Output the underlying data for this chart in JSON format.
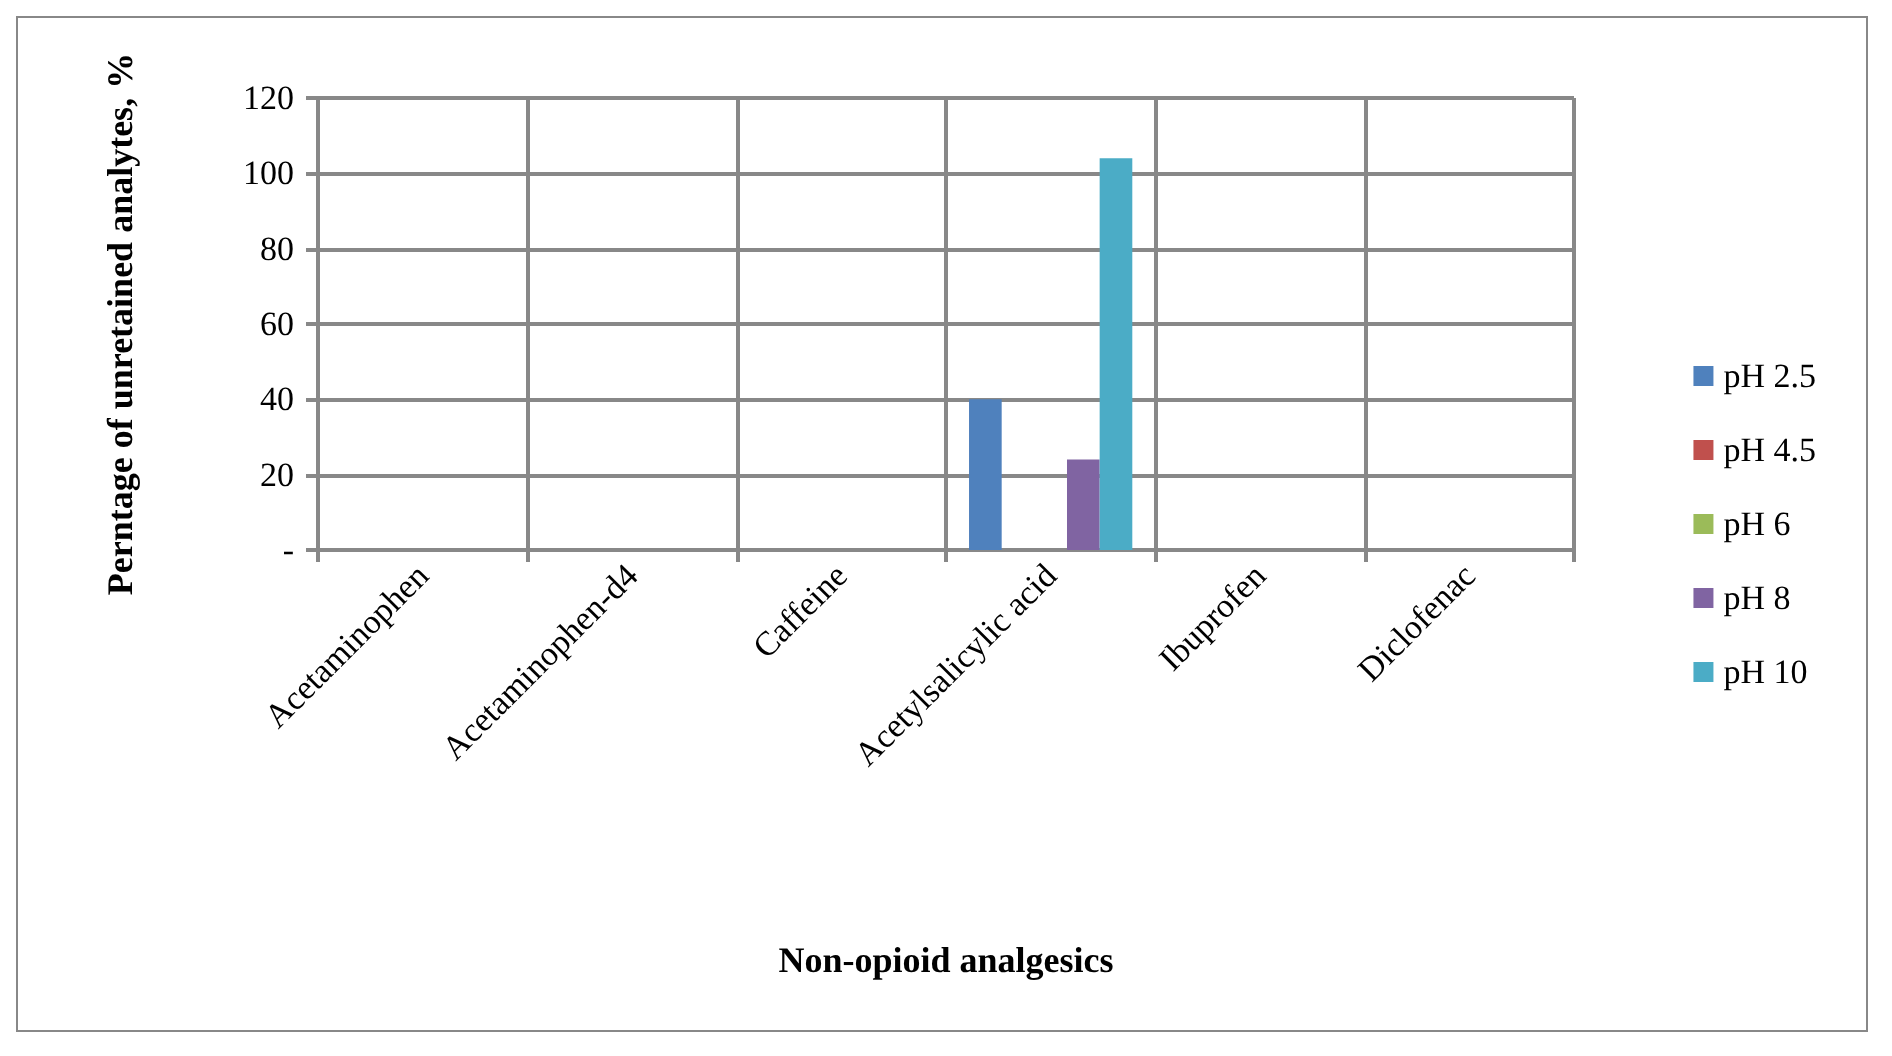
{
  "chart_data": {
    "type": "bar",
    "xlabel": "Non-opioid analgesics",
    "ylabel": "Perntage of unretained analytes, %",
    "categories": [
      "Acetaminophen",
      "Acetaminophen-d4",
      "Caffeine",
      "Acetylsalicylic acid",
      "Ibuprofen",
      "Diclofenac"
    ],
    "series": [
      {
        "name": "pH 2.5",
        "color": "#4f81bd",
        "values": [
          0,
          0,
          0,
          40,
          0,
          0
        ]
      },
      {
        "name": "pH 4.5",
        "color": "#c0504d",
        "values": [
          0,
          0,
          0,
          0,
          0,
          0
        ]
      },
      {
        "name": "pH 6",
        "color": "#9bbb59",
        "values": [
          0,
          0,
          0,
          0,
          0,
          0
        ]
      },
      {
        "name": "pH 8",
        "color": "#8064a2",
        "values": [
          0,
          0,
          0,
          24,
          0,
          0
        ]
      },
      {
        "name": "pH 10",
        "color": "#4bacc6",
        "values": [
          0,
          0,
          0,
          104,
          0,
          0
        ]
      }
    ],
    "ylim": [
      0,
      120
    ],
    "yticks": [
      {
        "value": 0,
        "label": "-"
      },
      20,
      40,
      60,
      80,
      100,
      120
    ],
    "grid": true,
    "legend": "right"
  }
}
